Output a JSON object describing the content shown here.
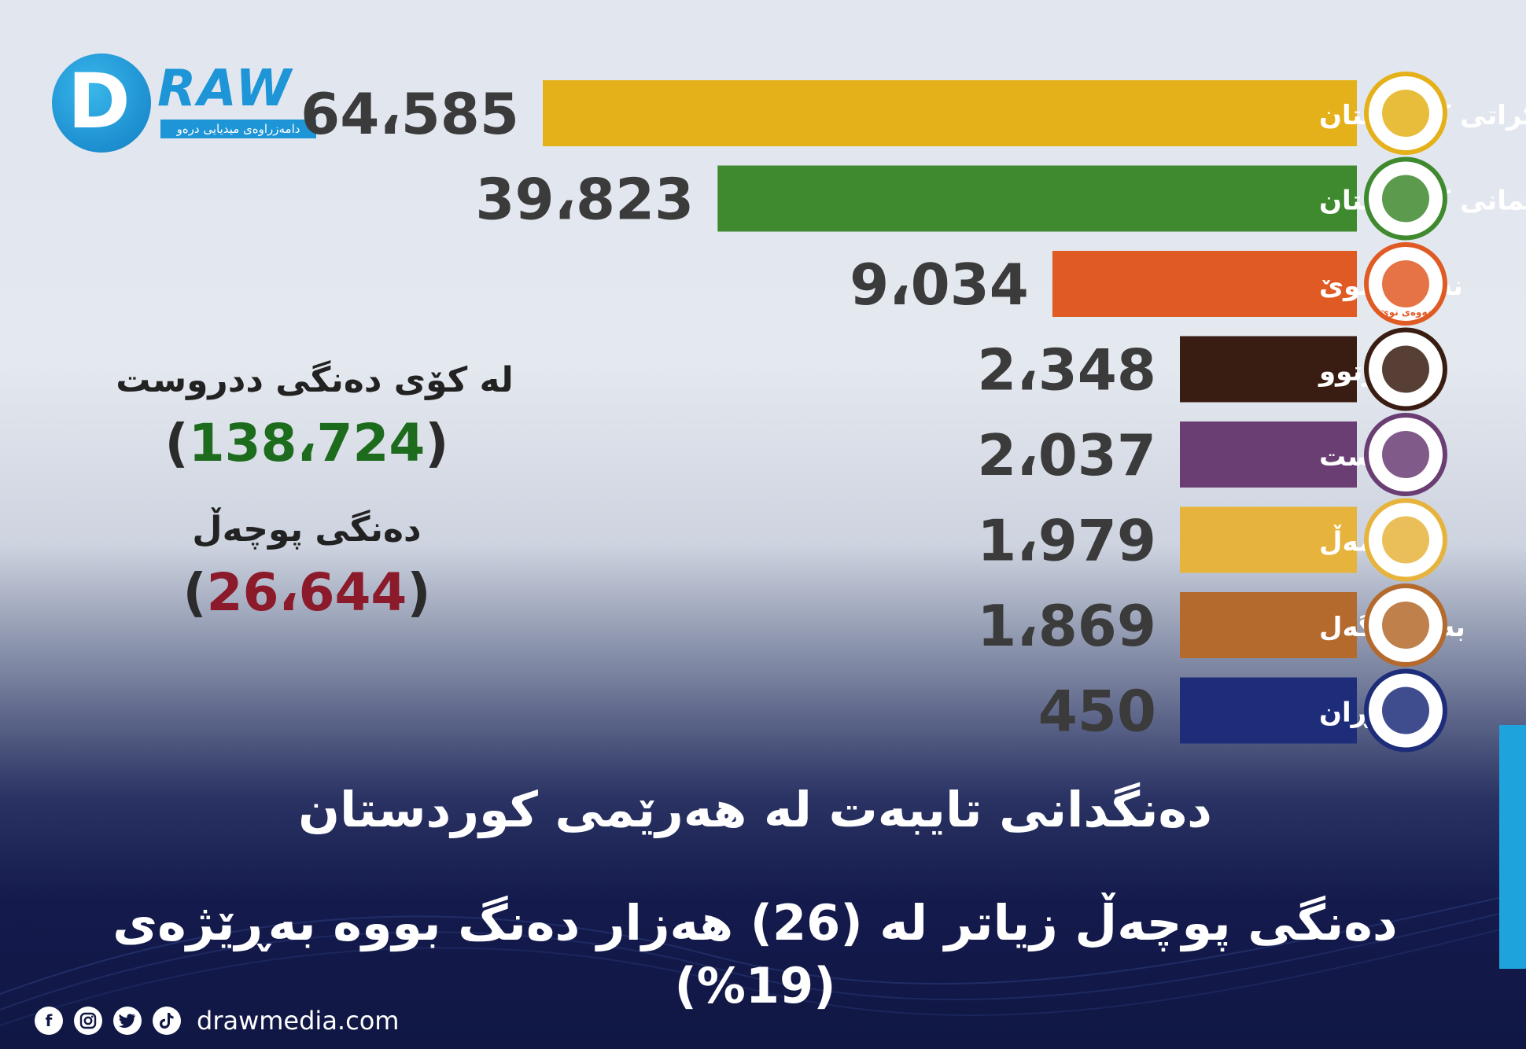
{
  "logo": {
    "word": "RAW",
    "letter": "D",
    "tagline": "دامەزراوەی میدیایی درەو"
  },
  "chart_data": {
    "type": "bar",
    "orientation": "horizontal",
    "categories": [
      "پارتی دیموکراتی کوردستان",
      "یەکێتی نیشتمانی کوردستان",
      "نەوەی نوێ",
      "یەکگرتوو",
      "هەڵوێست",
      "کۆمەڵ",
      "بەرەی گەل",
      "گۆڕان"
    ],
    "values": [
      64585,
      39823,
      9034,
      2348,
      2037,
      1979,
      1869,
      450
    ],
    "value_labels": [
      "64،585",
      "39،823",
      "9،034",
      "2،348",
      "2،037",
      "1،979",
      "1،869",
      "450"
    ],
    "colors": [
      "#e5b11a",
      "#3f8a2e",
      "#e05a24",
      "#3a1d12",
      "#6a3d73",
      "#e6b43c",
      "#b46a2d",
      "#1d2d7a"
    ],
    "logo_text": [
      "",
      "",
      "نەوەی نوێ",
      "",
      "",
      "",
      "",
      ""
    ]
  },
  "stats": {
    "valid_label": "لە کۆی دەنگی ددروست",
    "valid_value": "138،724",
    "invalid_label": "دەنگی پوچەڵ",
    "invalid_value": "26،644",
    "open_paren": "(",
    "close_paren": ")"
  },
  "headline": {
    "line1": "دەنگدانی تایبەت لە هەرێمی کوردستان",
    "line2": "دەنگی پوچەڵ زیاتر لە (26) هەزار دەنگ بووە بەڕێژەی (19%)"
  },
  "footer": {
    "site": "drawmedia.com",
    "icons": [
      "facebook-icon",
      "instagram-icon",
      "twitter-icon",
      "tiktok-icon"
    ]
  }
}
